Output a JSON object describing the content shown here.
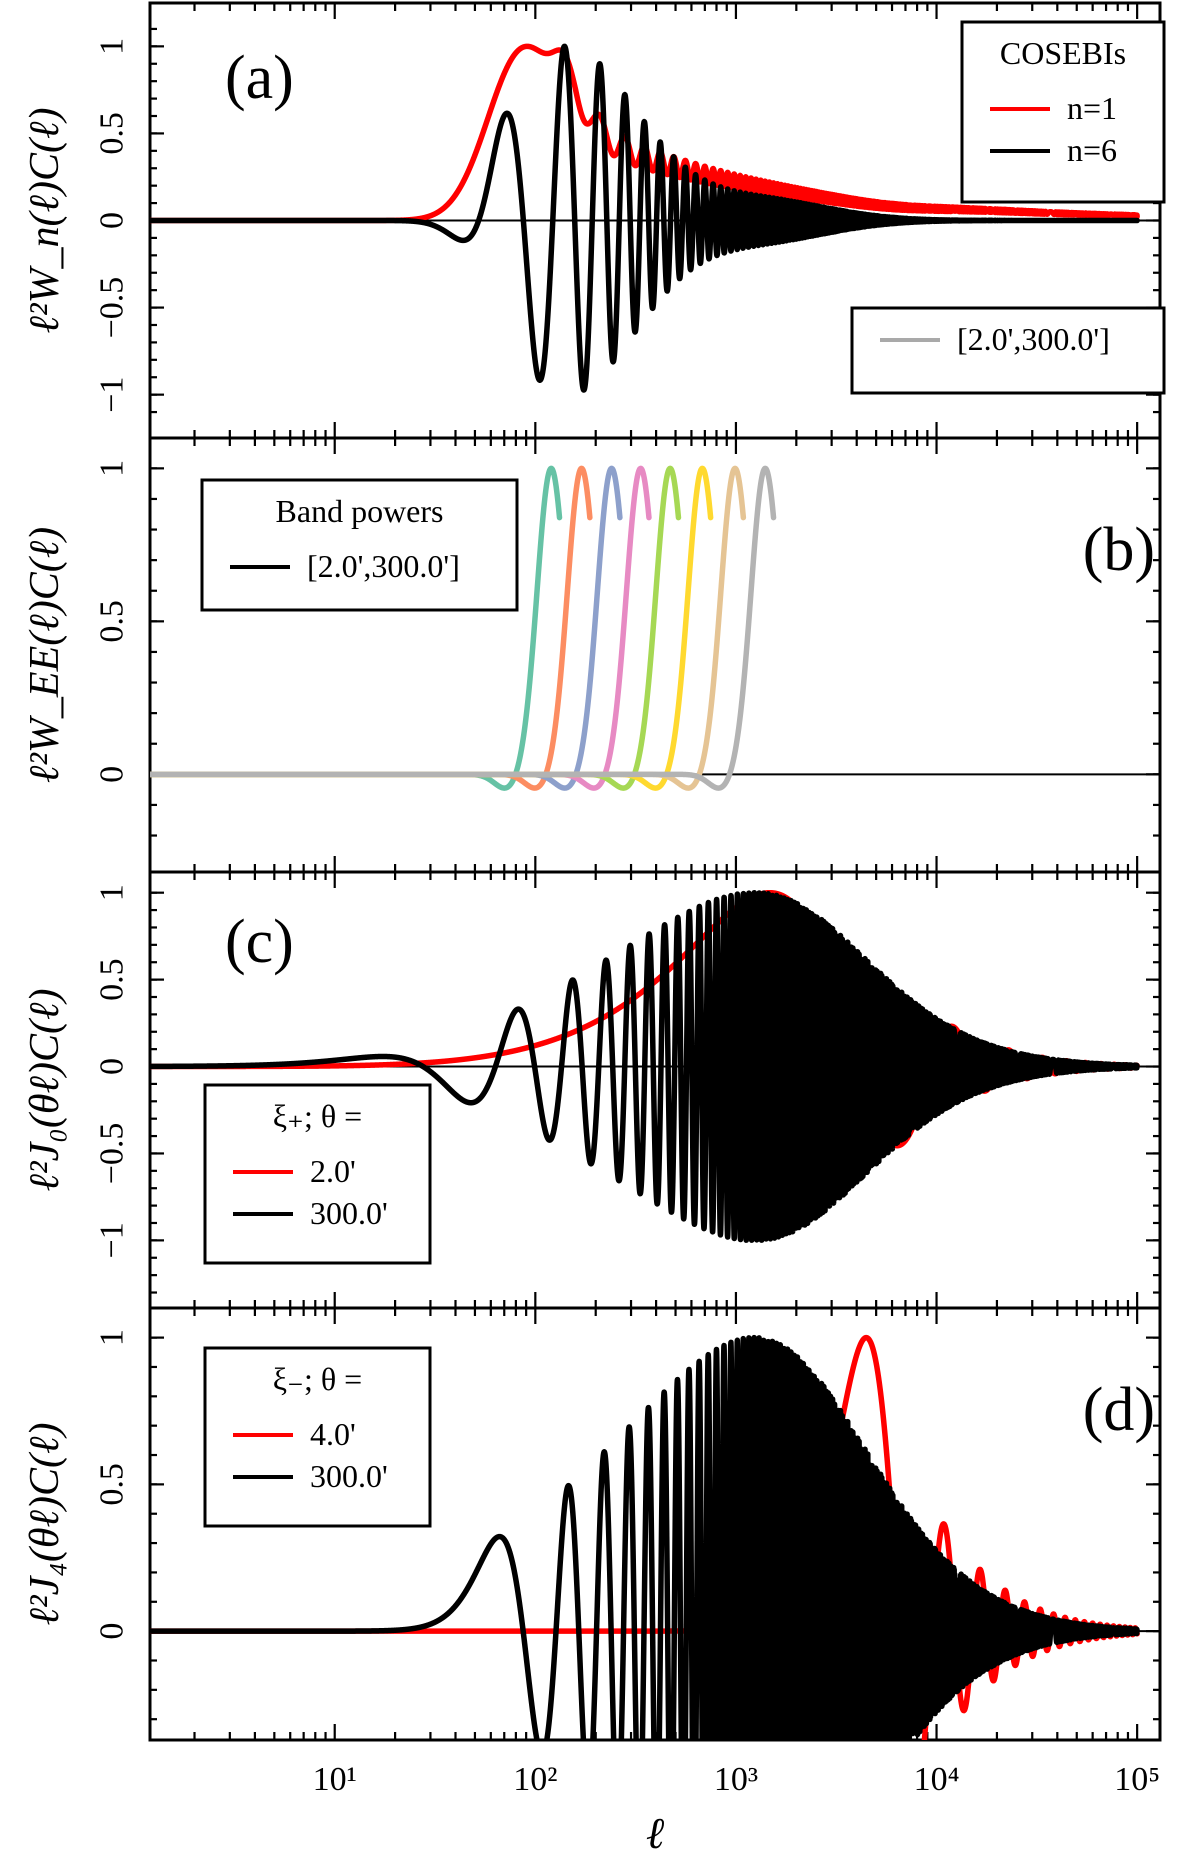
{
  "chart_data": [
    {
      "id": "a",
      "type": "line",
      "panel_label": "(a)",
      "ylabel": "ℓ²W_n(ℓ)C(ℓ)",
      "xscale": "log",
      "xlim": [
        1.2,
        130000
      ],
      "ylim": [
        -1.18,
        1.18
      ],
      "yticks": [
        {
          "v": 1,
          "label": "1"
        },
        {
          "v": 0.5,
          "label": "0.5"
        },
        {
          "v": 0,
          "label": "0"
        },
        {
          "v": -0.5,
          "label": "−0.5"
        },
        {
          "v": -1,
          "label": "−1"
        }
      ],
      "legend": {
        "title": "COSEBIs",
        "entries": [
          {
            "label": "n=1",
            "color": "#ff0000"
          },
          {
            "label": "n=6",
            "color": "#000000"
          }
        ]
      },
      "legend2": {
        "entries": [
          {
            "label": "[2.0',300.0']",
            "color": "#a9a9a9"
          }
        ]
      },
      "series": [
        {
          "name": "n=1",
          "color": "#ff0000",
          "kind": "cosebi1",
          "x_range": [
            1.2,
            100000
          ]
        },
        {
          "name": "n=6",
          "color": "#000000",
          "kind": "cosebi6",
          "x_range": [
            1.2,
            100000
          ]
        }
      ]
    },
    {
      "id": "b",
      "type": "line",
      "panel_label": "(b)",
      "ylabel": "ℓ²W_EE(ℓ)C(ℓ)",
      "xscale": "log",
      "xlim": [
        1.2,
        130000
      ],
      "ylim": [
        -0.28,
        1.06
      ],
      "yticks": [
        {
          "v": 1,
          "label": "1"
        },
        {
          "v": 0.5,
          "label": "0.5"
        },
        {
          "v": 0,
          "label": "0"
        }
      ],
      "legend": {
        "title": "Band powers",
        "entries": [
          {
            "label": "[2.0',300.0']",
            "color": "#000000"
          }
        ]
      },
      "series": [
        {
          "name": "band 1",
          "color": "#66c2a5",
          "peak": 120
        },
        {
          "name": "band 2",
          "color": "#fc8d62",
          "peak": 170
        },
        {
          "name": "band 3",
          "color": "#8da0cb",
          "peak": 240
        },
        {
          "name": "band 4",
          "color": "#e78ac3",
          "peak": 335
        },
        {
          "name": "band 5",
          "color": "#a6d854",
          "peak": 470
        },
        {
          "name": "band 6",
          "color": "#ffd92f",
          "peak": 680
        },
        {
          "name": "band 7",
          "color": "#e5c494",
          "peak": 990
        },
        {
          "name": "band 8",
          "color": "#b3b3b3",
          "peak": 1400
        }
      ]
    },
    {
      "id": "c",
      "type": "line",
      "panel_label": "(c)",
      "ylabel": "ℓ²J₀(θℓ)C(ℓ)",
      "xscale": "log",
      "xlim": [
        1.2,
        130000
      ],
      "ylim": [
        -1.32,
        1.05
      ],
      "yticks": [
        {
          "v": 1,
          "label": "1"
        },
        {
          "v": 0.5,
          "label": "0.5"
        },
        {
          "v": 0,
          "label": "0"
        },
        {
          "v": -0.5,
          "label": "−0.5"
        },
        {
          "v": -1,
          "label": "−1"
        }
      ],
      "legend": {
        "title": "ξ₊; θ =",
        "entries": [
          {
            "label": "2.0'",
            "color": "#ff0000"
          },
          {
            "label": "300.0'",
            "color": "#000000"
          }
        ]
      },
      "series": [
        {
          "name": "2.0'",
          "color": "#ff0000",
          "kind": "j0",
          "theta_arcmin": 2.0,
          "x_range": [
            1.2,
            100000
          ]
        },
        {
          "name": "300.0'",
          "color": "#000000",
          "kind": "j0",
          "theta_arcmin": 300.0,
          "x_range": [
            1.2,
            100000
          ]
        }
      ]
    },
    {
      "id": "d",
      "type": "line",
      "panel_label": "(d)",
      "ylabel": "ℓ²J₄(θℓ)C(ℓ)",
      "xscale": "log",
      "xlim": [
        1.2,
        130000
      ],
      "ylim": [
        -0.33,
        1.06
      ],
      "yticks": [
        {
          "v": 1,
          "label": "1"
        },
        {
          "v": 0.5,
          "label": "0.5"
        },
        {
          "v": 0,
          "label": "0"
        }
      ],
      "legend": {
        "title": "ξ₋; θ =",
        "entries": [
          {
            "label": "4.0'",
            "color": "#ff0000"
          },
          {
            "label": "300.0'",
            "color": "#000000"
          }
        ]
      },
      "series": [
        {
          "name": "4.0'",
          "color": "#ff0000",
          "kind": "j4",
          "theta_arcmin": 4.0,
          "x_range": [
            1.2,
            100000
          ]
        },
        {
          "name": "300.0'",
          "color": "#000000",
          "kind": "j4",
          "theta_arcmin": 300.0,
          "x_range": [
            1.2,
            100000
          ]
        }
      ]
    }
  ],
  "xlabel": "ℓ",
  "xticks": [
    {
      "v": 10,
      "label": "10¹"
    },
    {
      "v": 100,
      "label": "10²"
    },
    {
      "v": 1000,
      "label": "10³"
    },
    {
      "v": 10000,
      "label": "10⁴"
    },
    {
      "v": 100000,
      "label": "10⁵"
    }
  ]
}
